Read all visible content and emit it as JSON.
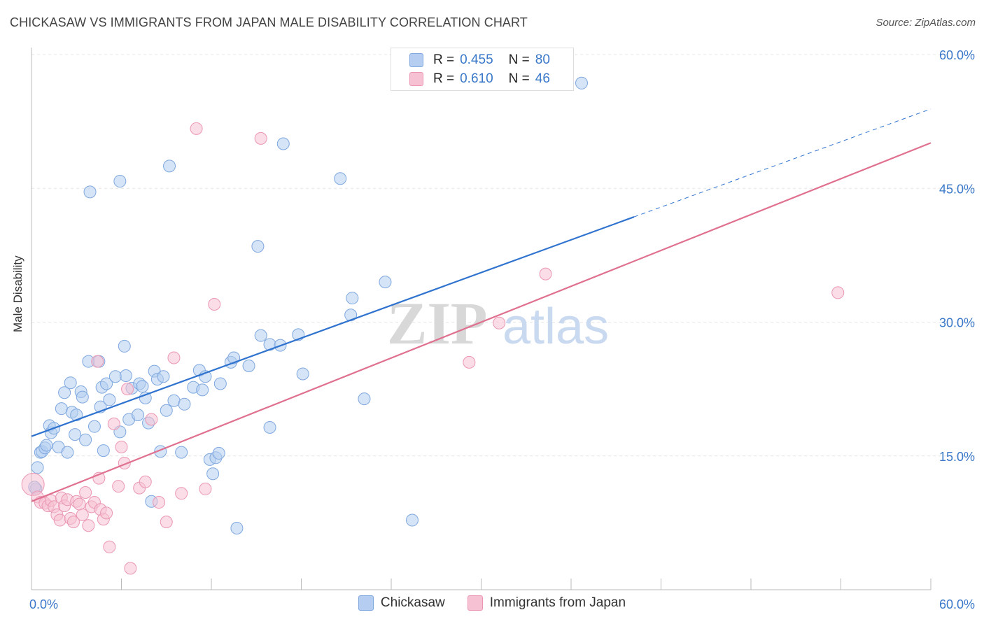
{
  "chart_data": {
    "type": "scatter",
    "title": "CHICKASAW VS IMMIGRANTS FROM JAPAN MALE DISABILITY CORRELATION CHART",
    "source": "Source: ZipAtlas.com",
    "xlabel": "",
    "ylabel": "Male Disability",
    "xlim": [
      0,
      60
    ],
    "ylim": [
      0,
      60
    ],
    "x_tick_labels": [
      "0.0%",
      "60.0%"
    ],
    "y_tick_labels": [
      "15.0%",
      "30.0%",
      "45.0%",
      "60.0%"
    ],
    "y_tick_values": [
      15,
      30,
      45,
      60
    ],
    "watermark": "ZIPatlas",
    "legend": [
      {
        "name": "Chickasaw",
        "r_label": "R =",
        "r": "0.455",
        "n_label": "N =",
        "n": "80"
      },
      {
        "name": "Immigrants from Japan",
        "r_label": "R =",
        "r": "0.610",
        "n_label": "N =",
        "n": "46"
      }
    ],
    "colors": {
      "chickasaw_fill": "#b5cdf0",
      "chickasaw_stroke": "#7fa8df",
      "chickasaw_line": "#2f73cf",
      "japan_fill": "#f6c1d2",
      "japan_stroke": "#eb97b3",
      "japan_line": "#e0708f",
      "tick_text": "#3a78c9"
    },
    "series": [
      {
        "name": "Chickasaw",
        "trend": {
          "x0": 0,
          "y0": 17.2,
          "x1": 40.2,
          "y1": 41.8,
          "dash_x1": 60,
          "dash_y1": 53.9
        },
        "points": [
          [
            0.3,
            11.3
          ],
          [
            0.4,
            13.7
          ],
          [
            0.6,
            15.4
          ],
          [
            0.7,
            15.5
          ],
          [
            0.9,
            15.9
          ],
          [
            1.0,
            16.2
          ],
          [
            1.2,
            18.4
          ],
          [
            1.3,
            17.6
          ],
          [
            1.5,
            18.1
          ],
          [
            1.8,
            16.0
          ],
          [
            2.0,
            20.3
          ],
          [
            2.2,
            22.1
          ],
          [
            2.4,
            15.4
          ],
          [
            2.6,
            23.2
          ],
          [
            2.7,
            19.9
          ],
          [
            2.9,
            17.4
          ],
          [
            3.0,
            19.6
          ],
          [
            3.3,
            22.2
          ],
          [
            3.4,
            21.6
          ],
          [
            3.6,
            16.8
          ],
          [
            3.8,
            25.6
          ],
          [
            4.2,
            18.3
          ],
          [
            4.5,
            25.6
          ],
          [
            4.6,
            20.5
          ],
          [
            4.7,
            22.7
          ],
          [
            4.8,
            15.6
          ],
          [
            5.0,
            23.1
          ],
          [
            5.2,
            21.3
          ],
          [
            5.6,
            23.9
          ],
          [
            5.9,
            17.7
          ],
          [
            5.9,
            45.8
          ],
          [
            6.2,
            27.3
          ],
          [
            6.3,
            24.0
          ],
          [
            6.5,
            19.1
          ],
          [
            6.7,
            22.6
          ],
          [
            7.1,
            19.6
          ],
          [
            7.2,
            23.1
          ],
          [
            7.4,
            22.8
          ],
          [
            7.6,
            21.5
          ],
          [
            7.8,
            18.7
          ],
          [
            8.0,
            9.9
          ],
          [
            8.2,
            24.5
          ],
          [
            8.4,
            23.6
          ],
          [
            8.6,
            15.5
          ],
          [
            8.8,
            23.9
          ],
          [
            9.0,
            20.1
          ],
          [
            9.2,
            47.5
          ],
          [
            9.5,
            21.2
          ],
          [
            10.0,
            15.4
          ],
          [
            10.2,
            20.8
          ],
          [
            10.8,
            22.7
          ],
          [
            11.2,
            24.6
          ],
          [
            11.4,
            22.4
          ],
          [
            11.6,
            23.9
          ],
          [
            11.9,
            14.6
          ],
          [
            12.1,
            13.0
          ],
          [
            12.3,
            14.8
          ],
          [
            12.5,
            15.3
          ],
          [
            12.6,
            23.1
          ],
          [
            13.3,
            25.5
          ],
          [
            13.5,
            26.0
          ],
          [
            13.7,
            6.9
          ],
          [
            14.5,
            25.1
          ],
          [
            15.1,
            38.5
          ],
          [
            15.3,
            28.5
          ],
          [
            15.9,
            27.5
          ],
          [
            15.9,
            18.2
          ],
          [
            16.6,
            27.4
          ],
          [
            16.8,
            50.0
          ],
          [
            17.8,
            28.6
          ],
          [
            18.1,
            24.2
          ],
          [
            20.6,
            46.1
          ],
          [
            21.3,
            30.8
          ],
          [
            21.4,
            32.7
          ],
          [
            22.2,
            21.4
          ],
          [
            23.6,
            34.5
          ],
          [
            25.4,
            7.8
          ],
          [
            36.7,
            56.8
          ],
          [
            3.9,
            44.6
          ],
          [
            0.2,
            11.5
          ]
        ]
      },
      {
        "name": "Immigrants from Japan",
        "trend": {
          "x0": 0,
          "y0": 9.9,
          "x1": 60,
          "y1": 50.1
        },
        "points": [
          [
            0.1,
            11.8
          ],
          [
            0.4,
            10.4
          ],
          [
            0.6,
            9.8
          ],
          [
            0.9,
            9.7
          ],
          [
            1.1,
            9.4
          ],
          [
            1.3,
            10.0
          ],
          [
            1.5,
            9.3
          ],
          [
            1.7,
            8.4
          ],
          [
            1.9,
            7.8
          ],
          [
            2.0,
            10.3
          ],
          [
            2.2,
            9.4
          ],
          [
            2.4,
            10.1
          ],
          [
            2.6,
            8.0
          ],
          [
            2.8,
            7.6
          ],
          [
            3.0,
            9.9
          ],
          [
            3.2,
            9.6
          ],
          [
            3.4,
            8.4
          ],
          [
            3.6,
            10.9
          ],
          [
            3.8,
            7.2
          ],
          [
            4.0,
            9.3
          ],
          [
            4.2,
            9.8
          ],
          [
            4.4,
            25.6
          ],
          [
            4.5,
            12.5
          ],
          [
            4.6,
            9.0
          ],
          [
            4.8,
            7.9
          ],
          [
            5.0,
            8.6
          ],
          [
            5.2,
            4.8
          ],
          [
            5.5,
            18.6
          ],
          [
            5.8,
            11.6
          ],
          [
            6.0,
            16.0
          ],
          [
            6.2,
            14.2
          ],
          [
            6.4,
            22.5
          ],
          [
            6.6,
            2.4
          ],
          [
            7.2,
            11.4
          ],
          [
            7.6,
            12.1
          ],
          [
            8.0,
            19.1
          ],
          [
            8.5,
            9.8
          ],
          [
            9.0,
            7.6
          ],
          [
            9.5,
            26.0
          ],
          [
            10.0,
            10.8
          ],
          [
            11.0,
            51.7
          ],
          [
            11.6,
            11.3
          ],
          [
            12.2,
            32.0
          ],
          [
            15.3,
            50.6
          ],
          [
            29.2,
            25.5
          ],
          [
            31.2,
            29.9
          ]
        ]
      }
    ],
    "extra_points_japan": [
      [
        34.3,
        35.4
      ],
      [
        53.8,
        33.3
      ]
    ]
  }
}
